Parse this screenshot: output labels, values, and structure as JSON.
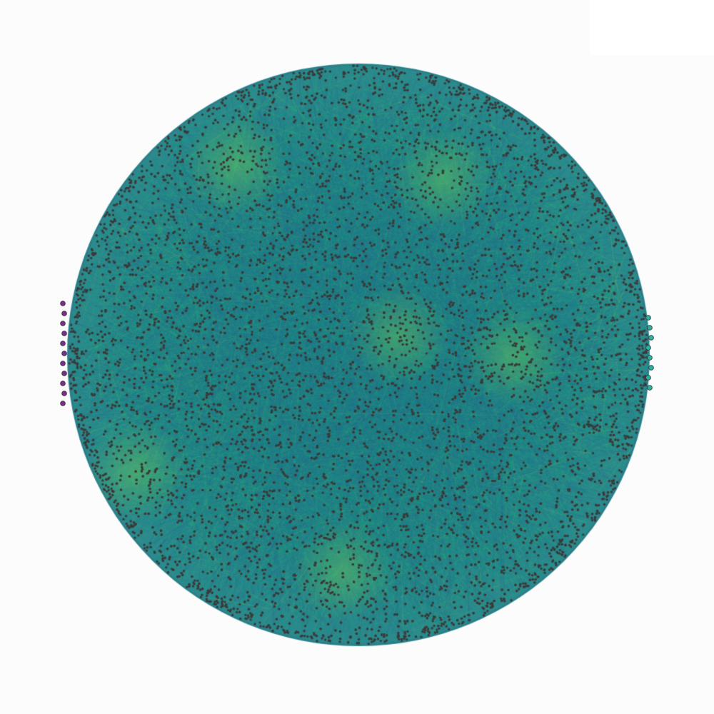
{
  "graph": {
    "node_fill": "#3a3a3a",
    "node_stroke": "#202020",
    "edge_colormap": "viridis",
    "background": "#fcfcfd",
    "edge_palette": [
      "#31688e",
      "#26828e",
      "#1f9e89",
      "#35b779",
      "#6ece58"
    ],
    "outlier_groups": [
      {
        "side": "left",
        "color": "#7b2d8e",
        "count": 11
      },
      {
        "side": "right",
        "color": "#2ab0a0",
        "count": 8
      }
    ]
  }
}
